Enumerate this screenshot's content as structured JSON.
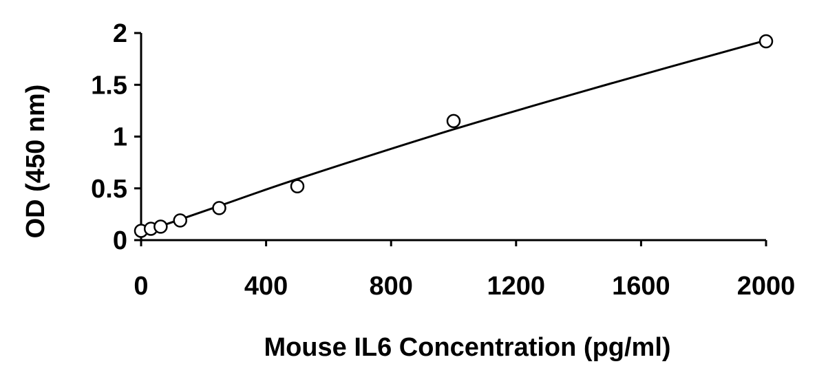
{
  "chart_data": {
    "type": "scatter",
    "title": "",
    "xlabel": "Mouse IL6 Concentration (pg/ml)",
    "ylabel": "OD (450 nm)",
    "xlim": [
      0,
      2000
    ],
    "ylim": [
      0,
      2
    ],
    "x_ticks": [
      "0",
      "400",
      "800",
      "1200",
      "1600",
      "2000"
    ],
    "y_ticks": [
      "0",
      "0.5",
      "1",
      "1.5",
      "2"
    ],
    "grid": false,
    "legend": "none",
    "series": [
      {
        "marker": "open-circle",
        "x": [
          0,
          31.25,
          62.5,
          125,
          250,
          500,
          1000,
          2000
        ],
        "y": [
          0.09,
          0.11,
          0.13,
          0.19,
          0.31,
          0.52,
          1.15,
          1.92
        ]
      }
    ],
    "fit_curve": {
      "kind": "smooth-fit",
      "x": [
        0,
        250,
        500,
        1000,
        1500,
        2000
      ],
      "y": [
        0.07,
        0.33,
        0.59,
        1.07,
        1.51,
        1.93
      ]
    },
    "colors": {
      "line": "#000000",
      "marker_stroke": "#000000",
      "marker_fill": "#ffffff"
    }
  }
}
